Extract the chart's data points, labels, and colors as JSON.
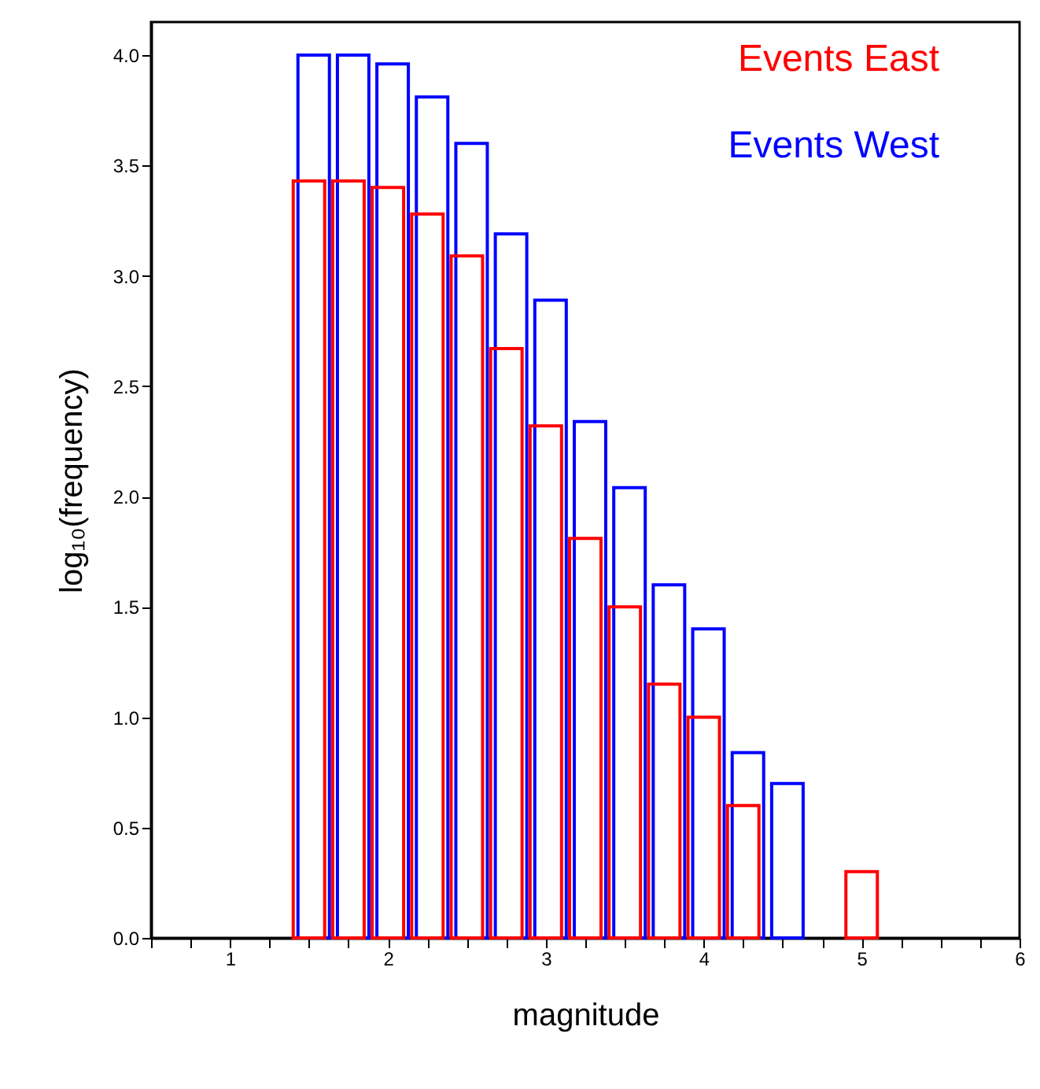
{
  "chart_data": {
    "type": "bar",
    "xlabel": "magnitude",
    "ylabel": "log₁₀(frequency)",
    "xlim": [
      0.5,
      6
    ],
    "ylim": [
      0,
      4.15
    ],
    "xticks": [
      {
        "value": 0.5,
        "label": null
      },
      {
        "value": 0.75,
        "label": null
      },
      1,
      {
        "value": 1.25,
        "label": null
      },
      {
        "value": 1.5,
        "label": null
      },
      {
        "value": 1.75,
        "label": null
      },
      2,
      {
        "value": 2.25,
        "label": null
      },
      {
        "value": 2.5,
        "label": null
      },
      {
        "value": 2.75,
        "label": null
      },
      3,
      {
        "value": 3.25,
        "label": null
      },
      {
        "value": 3.5,
        "label": null
      },
      {
        "value": 3.75,
        "label": null
      },
      4,
      {
        "value": 4.25,
        "label": null
      },
      {
        "value": 4.5,
        "label": null
      },
      {
        "value": 4.75,
        "label": null
      },
      5,
      {
        "value": 5.25,
        "label": null
      },
      {
        "value": 5.5,
        "label": null
      },
      {
        "value": 5.75,
        "label": null
      },
      6
    ],
    "yticks": [
      {
        "value": 0,
        "label": "0.0"
      },
      {
        "value": 0.5,
        "label": "0.5"
      },
      {
        "value": 1,
        "label": "1.0"
      },
      {
        "value": 1.5,
        "label": "1.5"
      },
      {
        "value": 2,
        "label": "2.0"
      },
      {
        "value": 2.5,
        "label": "2.5"
      },
      {
        "value": 3,
        "label": "3.0"
      },
      {
        "value": 3.5,
        "label": "3.5"
      },
      {
        "value": 4,
        "label": "4.0"
      }
    ],
    "grid": false,
    "legend": "top right",
    "series": [
      {
        "name": "Events West",
        "color": "#0000ff",
        "x": [
          1.5,
          1.75,
          2.0,
          2.25,
          2.5,
          2.75,
          3.0,
          3.25,
          3.5,
          3.75,
          4.0,
          4.25,
          4.5
        ],
        "values": [
          4.0,
          4.0,
          3.96,
          3.81,
          3.6,
          3.19,
          2.89,
          2.34,
          2.04,
          1.6,
          1.4,
          0.84,
          0.7
        ]
      },
      {
        "name": "Events East",
        "color": "#ff0000",
        "x": [
          1.5,
          1.75,
          2.0,
          2.25,
          2.5,
          2.75,
          3.0,
          3.25,
          3.5,
          3.75,
          4.0,
          4.25,
          5.0
        ],
        "values": [
          3.43,
          3.43,
          3.4,
          3.28,
          3.09,
          2.67,
          2.32,
          1.81,
          1.5,
          1.15,
          1.0,
          0.6,
          0.3
        ]
      }
    ]
  }
}
